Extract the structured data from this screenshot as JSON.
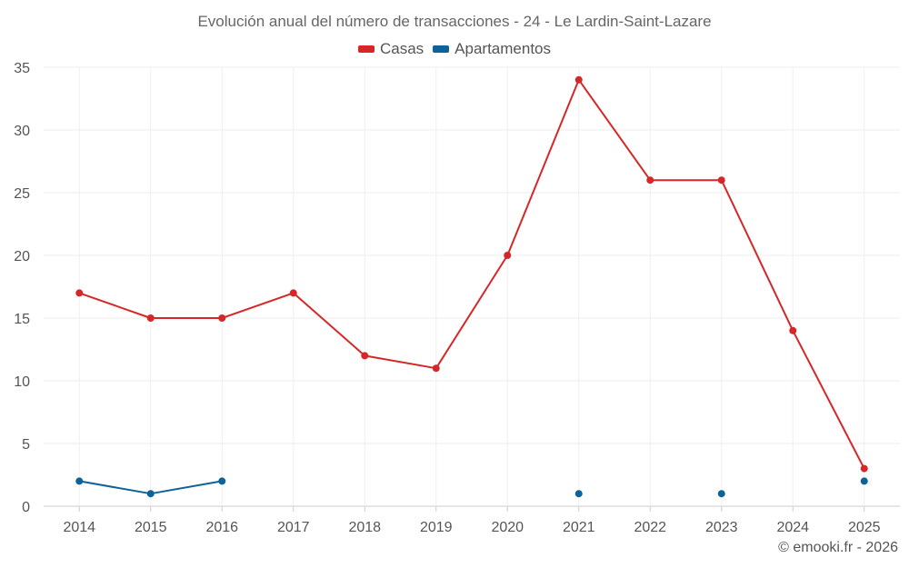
{
  "chart_data": {
    "type": "line",
    "title": "Evolución anual del número de transacciones - 24 - Le Lardin-Saint-Lazare",
    "categories": [
      "2014",
      "2015",
      "2016",
      "2017",
      "2018",
      "2019",
      "2020",
      "2021",
      "2022",
      "2023",
      "2024",
      "2025"
    ],
    "ylim": [
      0,
      35
    ],
    "yticks": [
      0,
      5,
      10,
      15,
      20,
      25,
      30,
      35
    ],
    "series": [
      {
        "name": "Casas",
        "color": "#d62728",
        "values": [
          17,
          15,
          15,
          17,
          12,
          11,
          20,
          34,
          26,
          26,
          14,
          3
        ]
      },
      {
        "name": "Apartamentos",
        "color": "#0d6399",
        "values": [
          2,
          1,
          2,
          null,
          null,
          null,
          null,
          1,
          null,
          1,
          null,
          2
        ]
      }
    ],
    "legend_position": "top-center",
    "grid": true
  },
  "credit": "© emooki.fr - 2026"
}
